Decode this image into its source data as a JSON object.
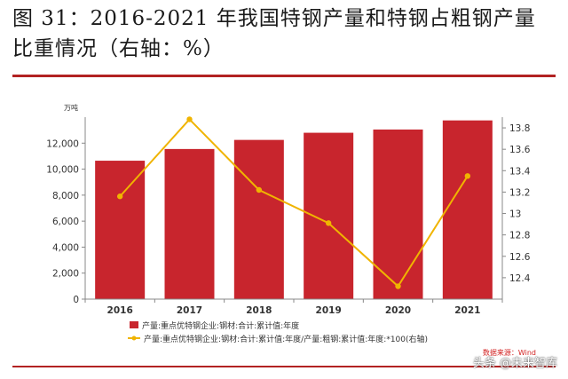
{
  "figure": {
    "title": "图 31：2016-2021 年我国特钢产量和特钢占粗钢产量比重情况（右轴：%）",
    "source": "数据来源：Wind",
    "watermark": "头条 @未来智库"
  },
  "colors": {
    "bar": "#c8252d",
    "line": "#f0b400",
    "rule": "#b22222",
    "axis": "#888888",
    "text": "#333333",
    "source": "#d21f1f"
  },
  "chart_data": {
    "type": "bar",
    "unit_left": "万吨",
    "categories": [
      "2016",
      "2017",
      "2018",
      "2019",
      "2020",
      "2021"
    ],
    "series": [
      {
        "name": "产量:重点优特钢企业:钢材:合计:累计值:年度",
        "type": "bar",
        "axis": "left",
        "values": [
          10650,
          11550,
          12250,
          12800,
          13050,
          13750
        ]
      },
      {
        "name": "产量:重点优特钢企业:钢材:合计:累计值:年度/产量:粗钢:累计值:年度:*100(右轴)",
        "type": "line",
        "axis": "right",
        "values": [
          13.16,
          13.88,
          13.22,
          12.91,
          12.32,
          13.35
        ]
      }
    ],
    "y_left": {
      "ylim": [
        0,
        14000
      ],
      "ticks": [
        0,
        2000,
        4000,
        6000,
        8000,
        10000,
        12000
      ],
      "tick_labels": [
        "0",
        "2,000",
        "4,000",
        "6,000",
        "8,000",
        "10,000",
        "12,000"
      ]
    },
    "y_right": {
      "ylim": [
        12.2,
        13.9
      ],
      "ticks": [
        12.4,
        12.6,
        12.8,
        13.0,
        13.2,
        13.4,
        13.6,
        13.8
      ],
      "tick_labels": [
        "12.4",
        "12.6",
        "12.8",
        "13",
        "13.2",
        "13.4",
        "13.6",
        "13.8"
      ]
    },
    "grid": false,
    "legend_position": "bottom"
  }
}
